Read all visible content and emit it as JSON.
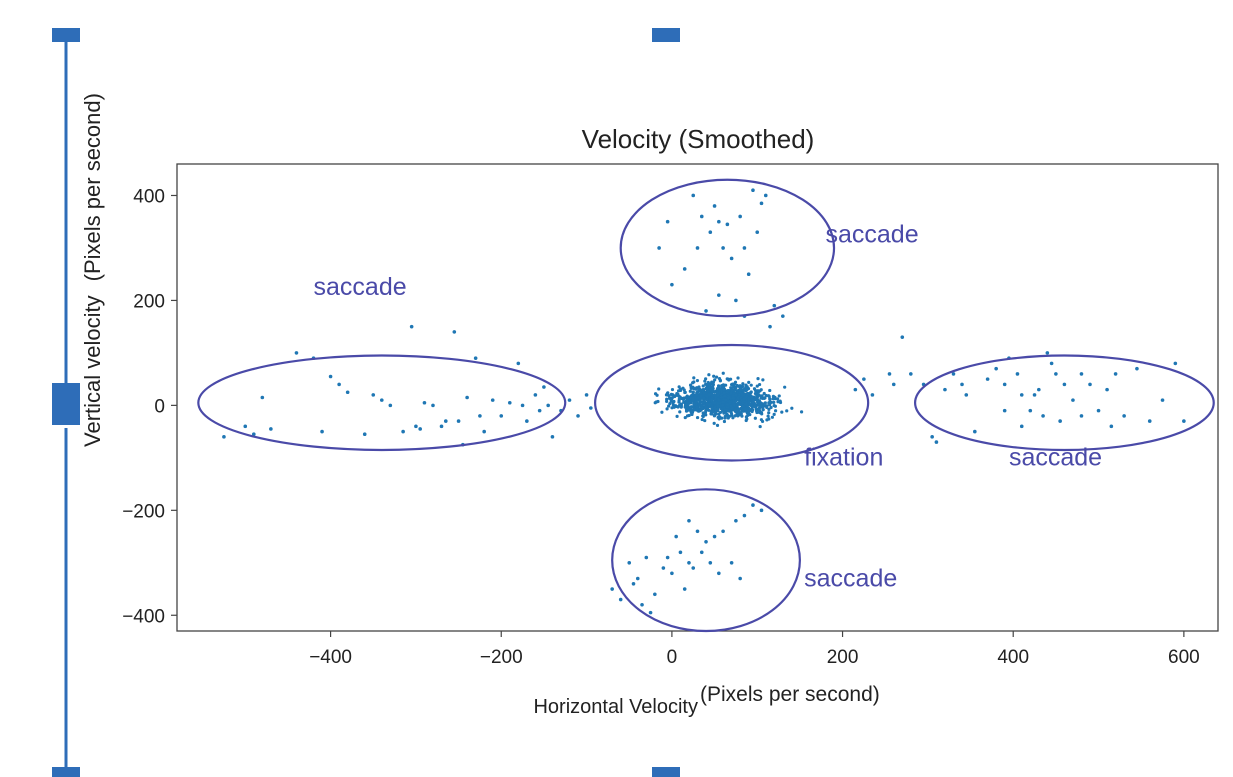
{
  "chart_data": {
    "type": "scatter",
    "title": "Velocity (Smoothed)",
    "xlabel": "Horizontal Velocity",
    "xlabel_unit": "(Pixels per second)",
    "ylabel": "Vertical velocity",
    "ylabel_unit": "(Pixels per second)",
    "xlim": [
      -580,
      640
    ],
    "ylim": [
      -430,
      460
    ],
    "xticks": [
      -400,
      -200,
      0,
      200,
      400,
      600
    ],
    "yticks": [
      -400,
      -200,
      0,
      200,
      400
    ],
    "grid": false,
    "point_color": "#1f77b4",
    "annotation_color": "#4a4aa8",
    "series": [
      {
        "points": [
          [
            -525,
            -60
          ],
          [
            -500,
            -40
          ],
          [
            -490,
            -55
          ],
          [
            -480,
            15
          ],
          [
            -470,
            -45
          ],
          [
            -440,
            100
          ],
          [
            -420,
            90
          ],
          [
            -410,
            -50
          ],
          [
            -400,
            55
          ],
          [
            -390,
            40
          ],
          [
            -380,
            25
          ],
          [
            -360,
            -55
          ],
          [
            -350,
            20
          ],
          [
            -340,
            10
          ],
          [
            -330,
            0
          ],
          [
            -315,
            -50
          ],
          [
            -305,
            150
          ],
          [
            -300,
            -40
          ],
          [
            -295,
            -45
          ],
          [
            -290,
            5
          ],
          [
            -280,
            0
          ],
          [
            -270,
            -40
          ],
          [
            -265,
            -30
          ],
          [
            -255,
            140
          ],
          [
            -250,
            -30
          ],
          [
            -245,
            -75
          ],
          [
            -240,
            15
          ],
          [
            -230,
            90
          ],
          [
            -225,
            -20
          ],
          [
            -220,
            -50
          ],
          [
            -210,
            10
          ],
          [
            -200,
            -20
          ],
          [
            -190,
            5
          ],
          [
            -180,
            80
          ],
          [
            -175,
            0
          ],
          [
            -170,
            -30
          ],
          [
            -160,
            20
          ],
          [
            -155,
            -10
          ],
          [
            -150,
            35
          ],
          [
            -145,
            0
          ],
          [
            -140,
            -60
          ],
          [
            -130,
            -10
          ],
          [
            -120,
            10
          ],
          [
            -110,
            -20
          ],
          [
            -100,
            20
          ],
          [
            -95,
            -5
          ],
          [
            25,
            400
          ],
          [
            35,
            360
          ],
          [
            45,
            330
          ],
          [
            50,
            380
          ],
          [
            55,
            350
          ],
          [
            60,
            300
          ],
          [
            65,
            345
          ],
          [
            70,
            280
          ],
          [
            75,
            200
          ],
          [
            80,
            360
          ],
          [
            85,
            300
          ],
          [
            90,
            250
          ],
          [
            95,
            410
          ],
          [
            100,
            330
          ],
          [
            105,
            385
          ],
          [
            110,
            400
          ],
          [
            -15,
            300
          ],
          [
            0,
            230
          ],
          [
            15,
            260
          ],
          [
            -5,
            350
          ],
          [
            30,
            300
          ],
          [
            40,
            180
          ],
          [
            55,
            210
          ],
          [
            85,
            170
          ],
          [
            115,
            150
          ],
          [
            120,
            190
          ],
          [
            130,
            170
          ],
          [
            20,
            -220
          ],
          [
            30,
            -240
          ],
          [
            35,
            -280
          ],
          [
            45,
            -300
          ],
          [
            50,
            -250
          ],
          [
            55,
            -320
          ],
          [
            60,
            -240
          ],
          [
            70,
            -300
          ],
          [
            75,
            -220
          ],
          [
            80,
            -330
          ],
          [
            85,
            -210
          ],
          [
            95,
            -190
          ],
          [
            105,
            -200
          ],
          [
            -50,
            -300
          ],
          [
            -40,
            -330
          ],
          [
            -30,
            -290
          ],
          [
            -20,
            -360
          ],
          [
            -10,
            -310
          ],
          [
            0,
            -320
          ],
          [
            10,
            -280
          ],
          [
            15,
            -350
          ],
          [
            25,
            -310
          ],
          [
            -60,
            -370
          ],
          [
            -70,
            -350
          ],
          [
            -35,
            -380
          ],
          [
            -25,
            -395
          ],
          [
            -45,
            -340
          ],
          [
            5,
            -250
          ],
          [
            20,
            -300
          ],
          [
            40,
            -260
          ],
          [
            -5,
            -290
          ],
          [
            215,
            30
          ],
          [
            225,
            50
          ],
          [
            235,
            20
          ],
          [
            255,
            60
          ],
          [
            260,
            40
          ],
          [
            270,
            130
          ],
          [
            280,
            60
          ],
          [
            295,
            40
          ],
          [
            305,
            -60
          ],
          [
            310,
            -70
          ],
          [
            320,
            30
          ],
          [
            330,
            60
          ],
          [
            340,
            40
          ],
          [
            345,
            20
          ],
          [
            355,
            -50
          ],
          [
            370,
            50
          ],
          [
            380,
            70
          ],
          [
            390,
            40
          ],
          [
            395,
            90
          ],
          [
            405,
            60
          ],
          [
            410,
            20
          ],
          [
            420,
            -10
          ],
          [
            425,
            20
          ],
          [
            430,
            30
          ],
          [
            435,
            -20
          ],
          [
            440,
            100
          ],
          [
            445,
            80
          ],
          [
            450,
            60
          ],
          [
            460,
            40
          ],
          [
            470,
            10
          ],
          [
            480,
            60
          ],
          [
            490,
            40
          ],
          [
            500,
            -10
          ],
          [
            510,
            30
          ],
          [
            520,
            60
          ],
          [
            530,
            -20
          ],
          [
            545,
            70
          ],
          [
            560,
            -30
          ],
          [
            575,
            10
          ],
          [
            590,
            80
          ],
          [
            600,
            -30
          ],
          [
            390,
            -10
          ],
          [
            410,
            -40
          ],
          [
            455,
            -30
          ],
          [
            480,
            -20
          ],
          [
            515,
            -40
          ]
        ]
      }
    ],
    "fixation_cluster": {
      "description_hidden": false,
      "center": [
        60,
        10
      ],
      "spread": [
        55,
        30
      ],
      "count": 1100
    },
    "annotations": [
      {
        "text": "saccade",
        "x": -420,
        "y": 210
      },
      {
        "text": "saccade",
        "x": 180,
        "y": 310
      },
      {
        "text": "fixation",
        "x": 155,
        "y": -115
      },
      {
        "text": "saccade",
        "x": 395,
        "y": -115
      },
      {
        "text": "saccade",
        "x": 155,
        "y": -345
      }
    ],
    "ellipses": [
      {
        "cx": -340,
        "cy": 5,
        "rx": 215,
        "ry": 90
      },
      {
        "cx": 65,
        "cy": 300,
        "rx": 125,
        "ry": 130
      },
      {
        "cx": 70,
        "cy": 5,
        "rx": 160,
        "ry": 110
      },
      {
        "cx": 460,
        "cy": 5,
        "rx": 175,
        "ry": 90
      },
      {
        "cx": 40,
        "cy": -295,
        "rx": 110,
        "ry": 135
      }
    ]
  }
}
